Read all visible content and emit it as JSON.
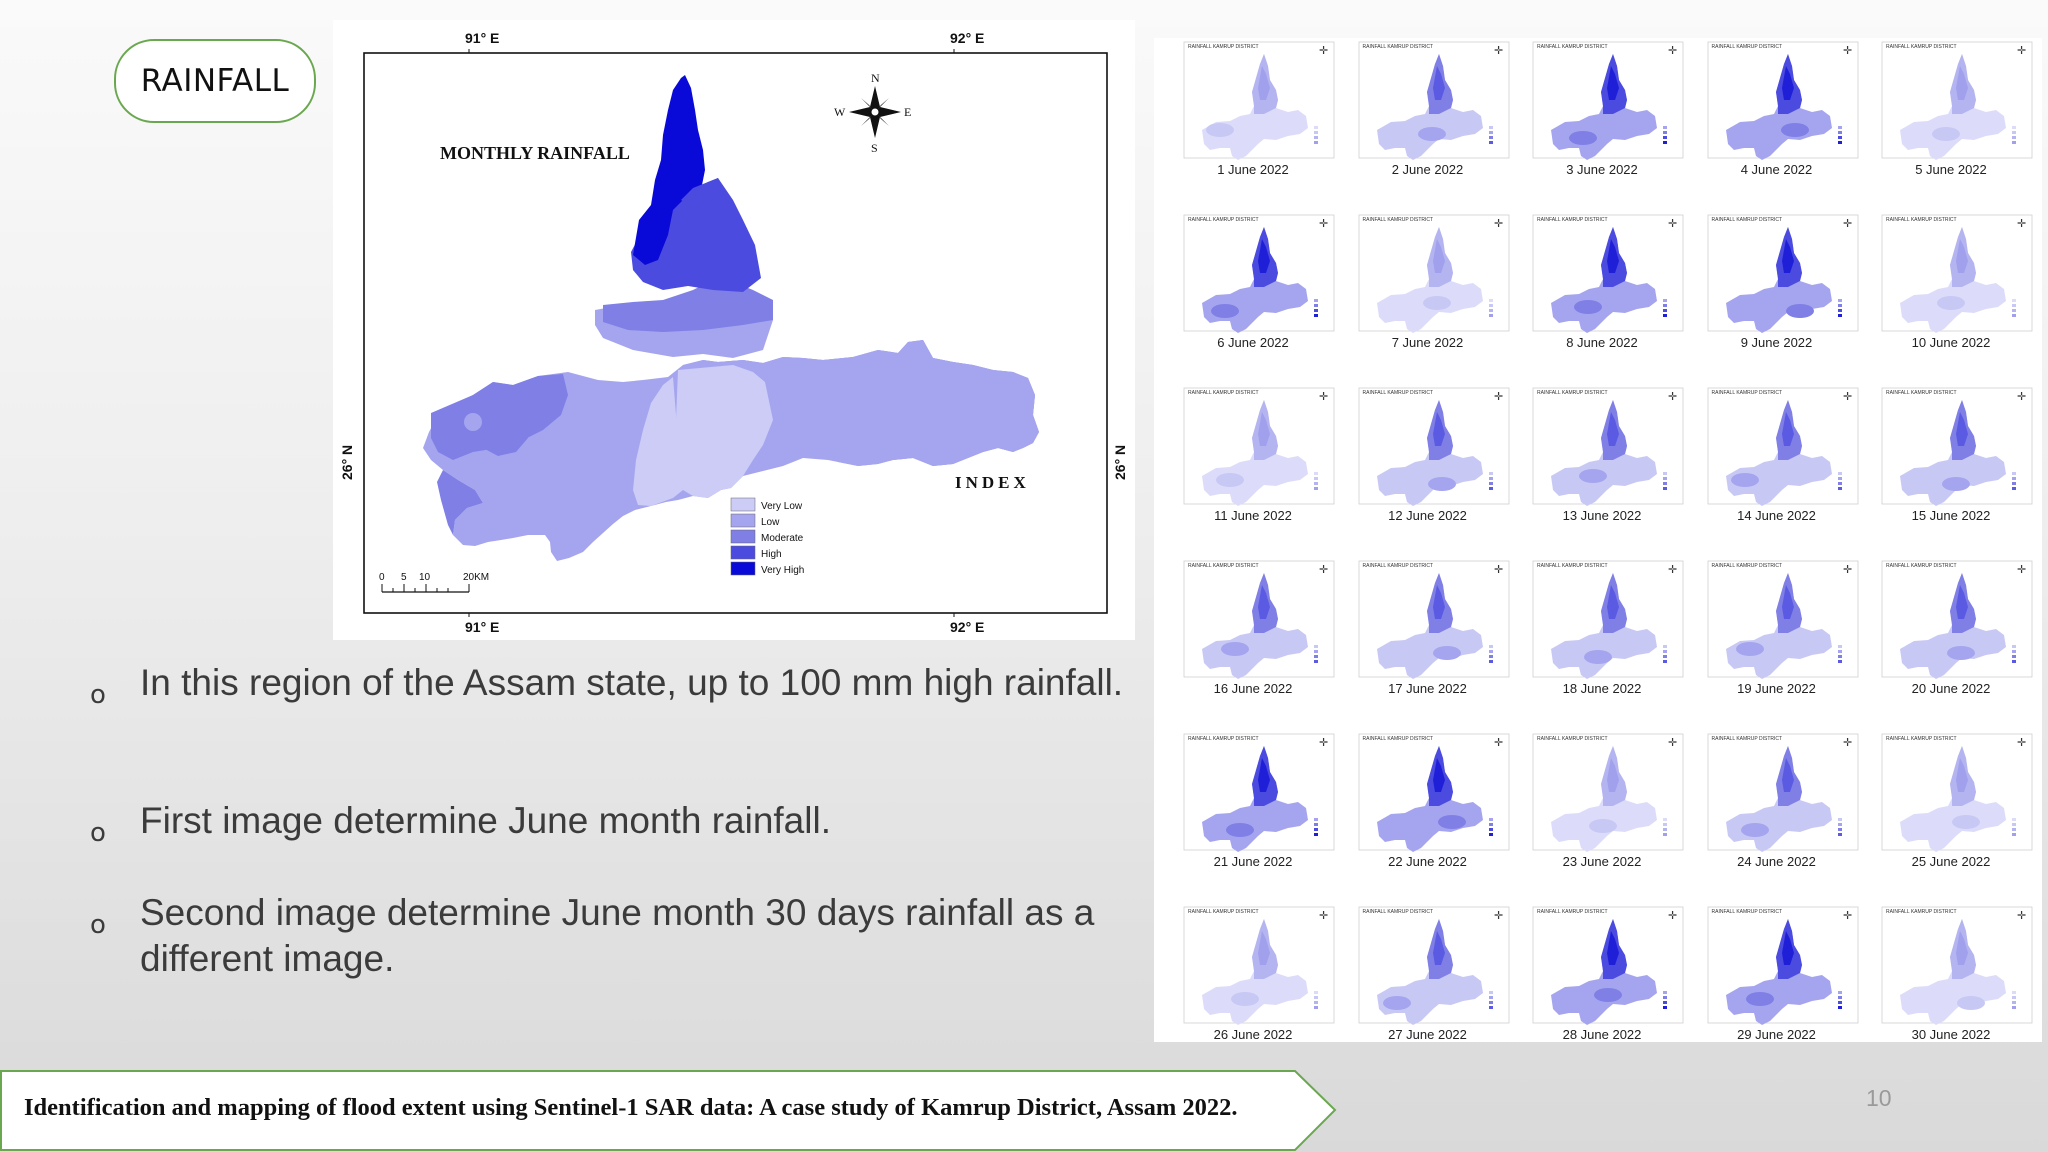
{
  "slide": {
    "title": "RAINFALL",
    "page_number": "10",
    "footer": "Identification and mapping of flood extent using Sentinel-1 SAR data: A case study of Kamrup District, Assam 2022.",
    "accent_color": "#6aa84f"
  },
  "map": {
    "title": "MONTHLY RAINFALL",
    "top_labels": [
      "91° E",
      "92° E"
    ],
    "bottom_labels": [
      "91° E",
      "92° E"
    ],
    "left_label": "26° N",
    "right_label": "26° N",
    "compass": {
      "n": "N",
      "s": "S",
      "e": "E",
      "w": "W"
    },
    "scale_labels": [
      "0",
      "5",
      "10",
      "20KM"
    ],
    "index_title": "INDEX",
    "legend": [
      {
        "label": "Very Low",
        "color": "#ccccf7"
      },
      {
        "label": "Low",
        "color": "#a5a5ef"
      },
      {
        "label": "Moderate",
        "color": "#7f7fe6"
      },
      {
        "label": "High",
        "color": "#4b4be0"
      },
      {
        "label": "Very High",
        "color": "#0a0ad8"
      }
    ]
  },
  "bullets": [
    "In this region of the Assam state, up to 100 mm high rainfall.",
    " First image determine June month rainfall.",
    "Second image determine June month 30 days rainfall as a different image."
  ],
  "bullet_marker": "o",
  "daily_maps": [
    {
      "caption": "1 June 2022",
      "header": "RAINFALL KAMRUP DISTRICT",
      "intensity": "low"
    },
    {
      "caption": "2 June 2022",
      "header": "RAINFALL KAMRUP DISTRICT",
      "intensity": "moderate"
    },
    {
      "caption": "3 June 2022",
      "header": "RAINFALL KAMRUP DISTRICT",
      "intensity": "high"
    },
    {
      "caption": "4 June 2022",
      "header": "RAINFALL KAMRUP DISTRICT",
      "intensity": "high"
    },
    {
      "caption": "5 June 2022",
      "header": "RAINFALL KAMRUP DISTRICT",
      "intensity": "low"
    },
    {
      "caption": "6 June 2022",
      "header": "RAINFALL KAMRUP DISTRICT",
      "intensity": "high"
    },
    {
      "caption": "7 June 2022",
      "header": "RAINFALL KAMRUP DISTRICT",
      "intensity": "low"
    },
    {
      "caption": "8 June 2022",
      "header": "RAINFALL KAMRUP DISTRICT",
      "intensity": "high"
    },
    {
      "caption": "9 June 2022",
      "header": "RAINFALL KAMRUP DISTRICT",
      "intensity": "high"
    },
    {
      "caption": "10 June 2022",
      "header": "RAINFALL KAMRUP DISTRICT",
      "intensity": "low"
    },
    {
      "caption": "11 June 2022",
      "header": "RAINFALL KAMRUP DISTRICT",
      "intensity": "low"
    },
    {
      "caption": "12 June 2022",
      "header": "RAINFALL KAMRUP DISTRICT",
      "intensity": "moderate"
    },
    {
      "caption": "13 June 2022",
      "header": "RAINFALL KAMRUP DISTRICT",
      "intensity": "moderate"
    },
    {
      "caption": "14 June 2022",
      "header": "RAINFALL KAMRUP DISTRICT",
      "intensity": "moderate"
    },
    {
      "caption": "15 June 2022",
      "header": "RAINFALL KAMRUP DISTRICT",
      "intensity": "moderate"
    },
    {
      "caption": "16 June 2022",
      "header": "RAINFALL KAMRUP DISTRICT",
      "intensity": "moderate"
    },
    {
      "caption": "17 June 2022",
      "header": "RAINFALL KAMRUP DISTRICT",
      "intensity": "moderate"
    },
    {
      "caption": "18 June 2022",
      "header": "RAINFALL KAMRUP DISTRICT",
      "intensity": "moderate"
    },
    {
      "caption": "19 June 2022",
      "header": "RAINFALL KAMRUP DISTRICT",
      "intensity": "moderate"
    },
    {
      "caption": "20 June 2022",
      "header": "RAINFALL KAMRUP DISTRICT",
      "intensity": "moderate"
    },
    {
      "caption": "21 June 2022",
      "header": "RAINFALL KAMRUP DISTRICT",
      "intensity": "high"
    },
    {
      "caption": "22 June 2022",
      "header": "RAINFALL KAMRUP DISTRICT",
      "intensity": "high"
    },
    {
      "caption": "23 June 2022",
      "header": "RAINFALL KAMRUP DISTRICT",
      "intensity": "low"
    },
    {
      "caption": "24 June 2022",
      "header": "RAINFALL KAMRUP DISTRICT",
      "intensity": "moderate"
    },
    {
      "caption": "25 June 2022",
      "header": "RAINFALL KAMRUP DISTRICT",
      "intensity": "low"
    },
    {
      "caption": "26 June 2022",
      "header": "RAINFALL KAMRUP DISTRICT",
      "intensity": "low"
    },
    {
      "caption": "27 June 2022",
      "header": "RAINFALL KAMRUP DISTRICT",
      "intensity": "moderate"
    },
    {
      "caption": "28 June 2022",
      "header": "RAINFALL KAMRUP DISTRICT",
      "intensity": "high"
    },
    {
      "caption": "29 June 2022",
      "header": "RAINFALL KAMRUP DISTRICT",
      "intensity": "high"
    },
    {
      "caption": "30 June 2022",
      "header": "RAINFALL KAMRUP DISTRICT",
      "intensity": "low"
    }
  ]
}
